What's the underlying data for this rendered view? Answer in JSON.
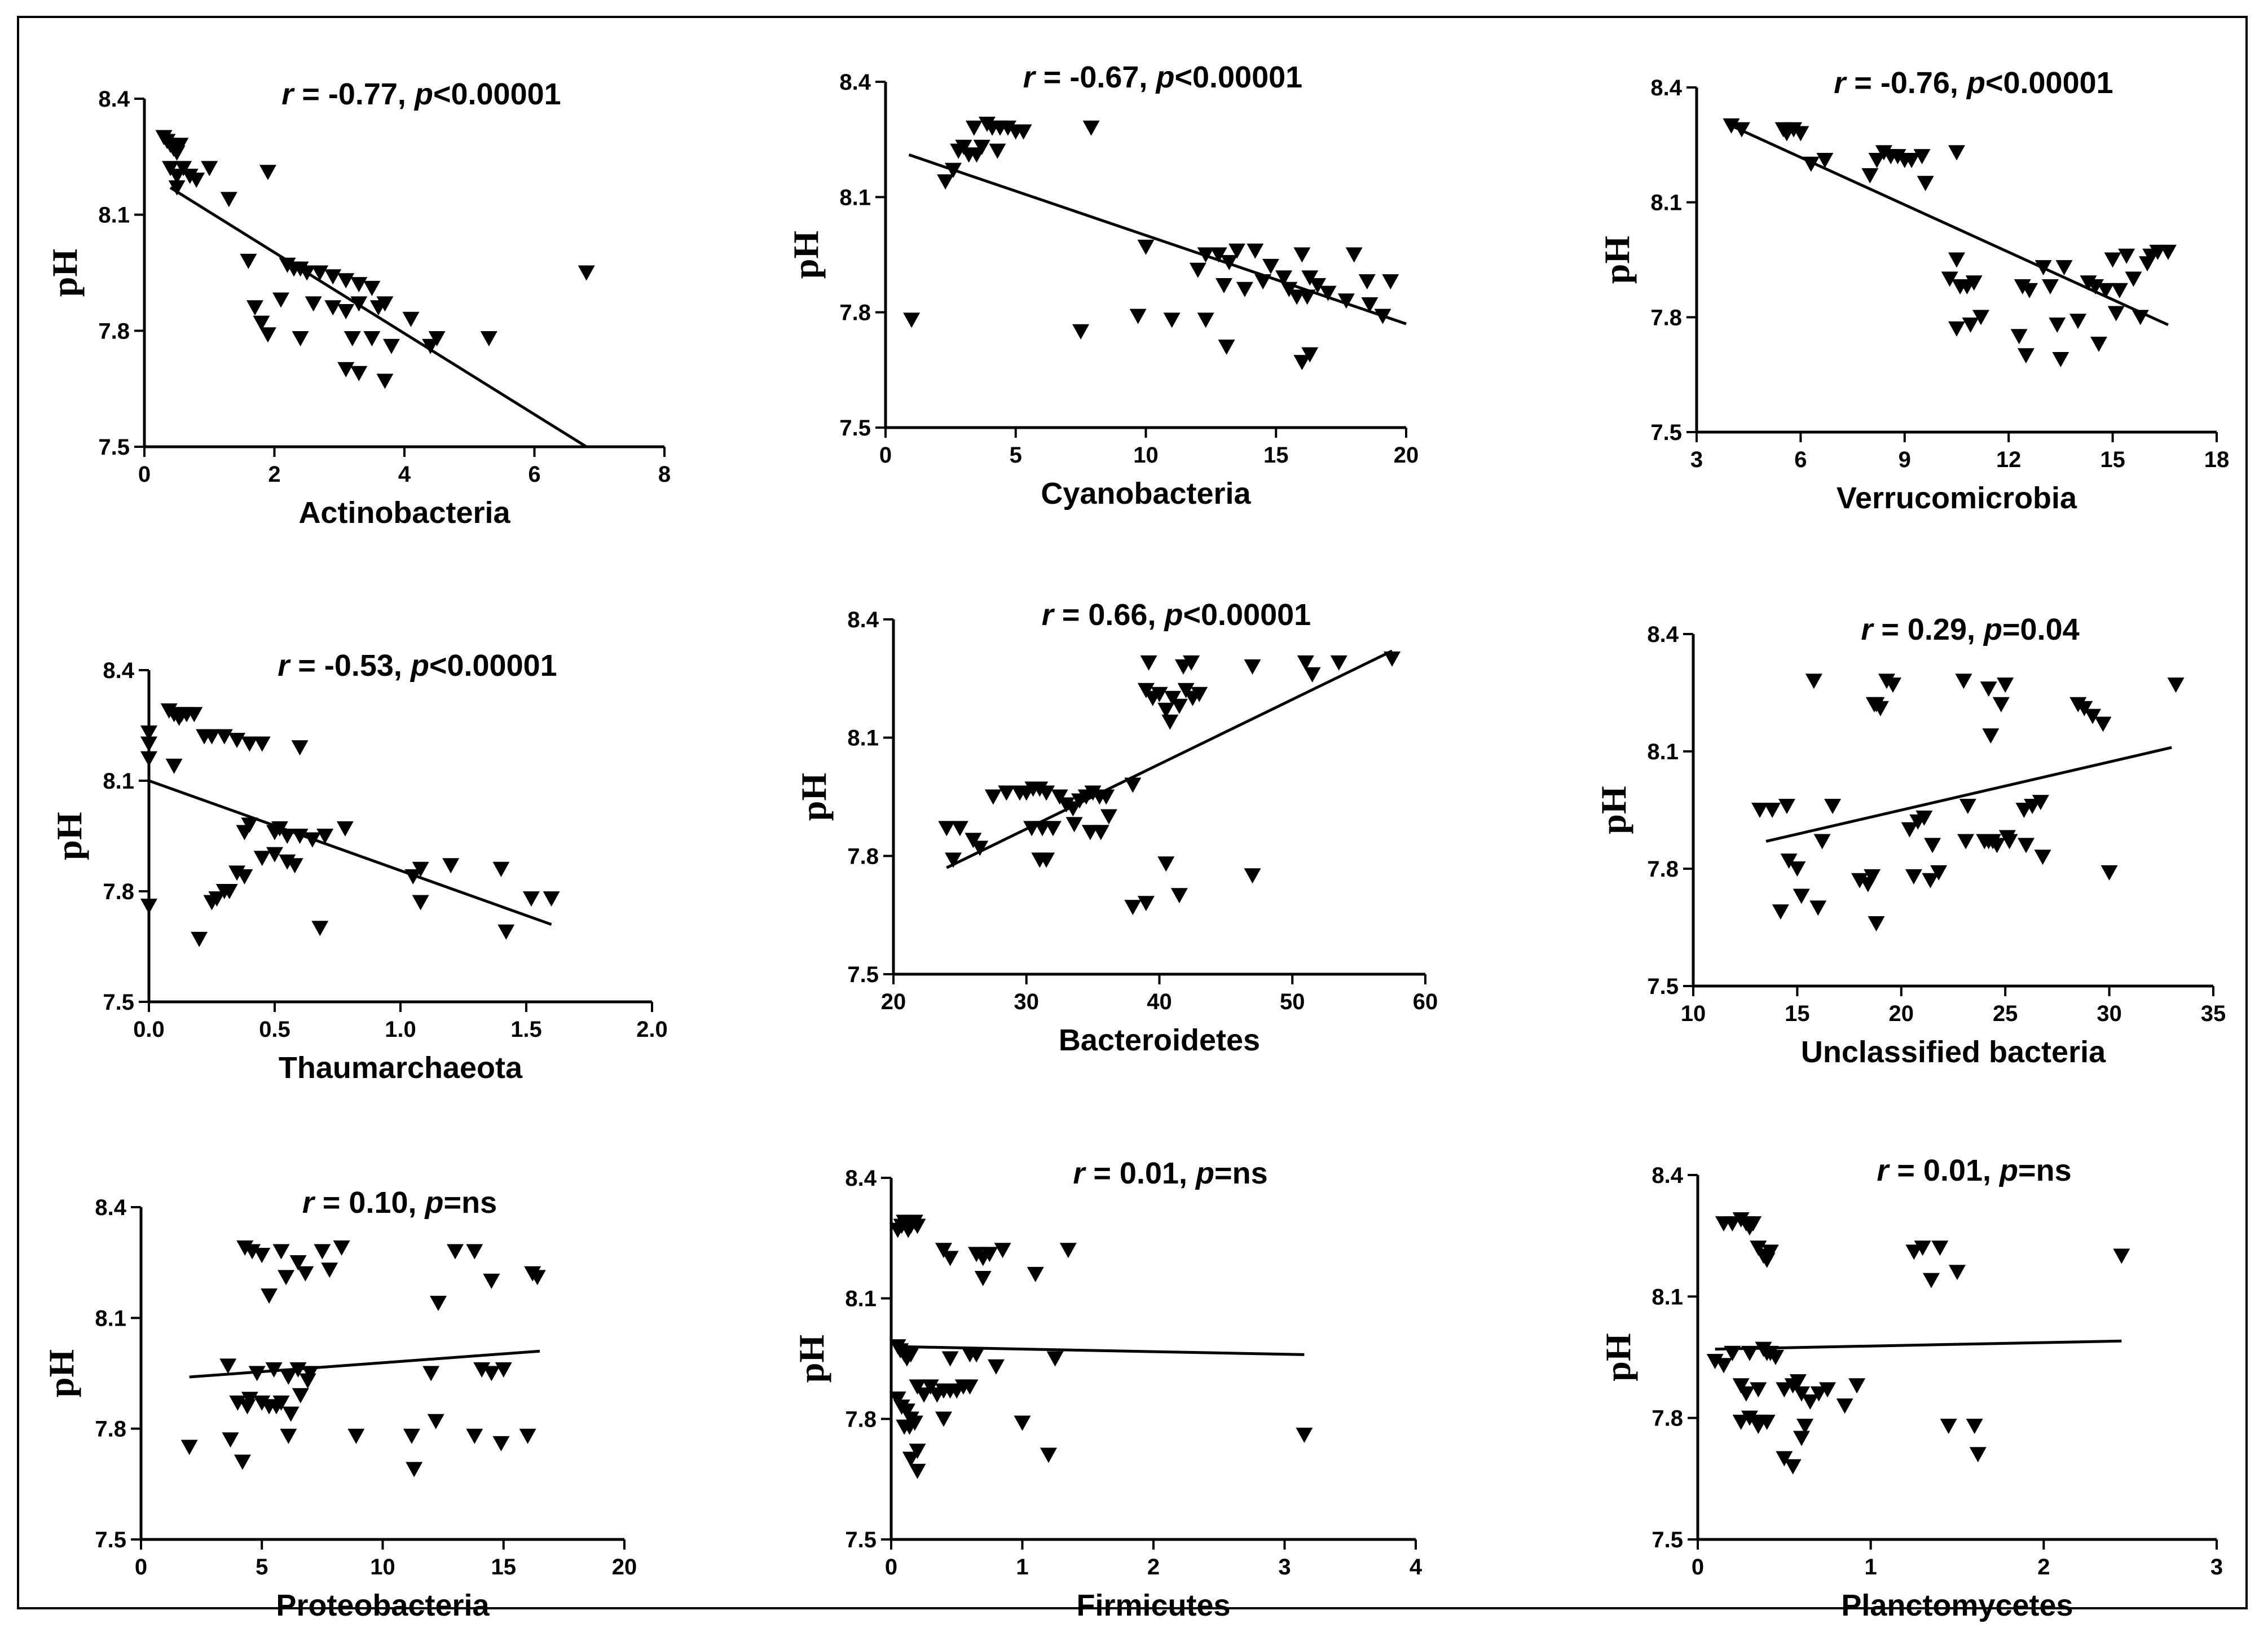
{
  "figure": {
    "background": "#ffffff",
    "marker_color": "#000000",
    "line_color": "#000000"
  },
  "chart_data": [
    {
      "type": "scatter",
      "title": "r = -0.77, p<0.00001",
      "stat_r": "-0.77",
      "stat_p": "<0.00001",
      "xlabel": "Actinobacteria",
      "ylabel": "pH",
      "xlim": [
        0,
        8
      ],
      "ylim": [
        7.5,
        8.4
      ],
      "xticks": [
        0,
        2,
        4,
        6,
        8
      ],
      "xtick_labels": [
        "0",
        "2",
        "4",
        "6",
        "8"
      ],
      "yticks": [
        7.5,
        7.8,
        8.1,
        8.4
      ],
      "ytick_labels": [
        "7.5",
        "7.8",
        "8.1",
        "8.4"
      ],
      "regression": [
        [
          0.4,
          8.17
        ],
        [
          6.8,
          7.5
        ]
      ],
      "x": [
        0.3,
        0.35,
        0.4,
        0.45,
        0.5,
        0.55,
        0.4,
        0.5,
        0.6,
        0.7,
        0.8,
        1.0,
        0.5,
        1.3,
        1.6,
        1.7,
        1.9,
        1.8,
        2.2,
        2.3,
        2.4,
        2.5,
        2.1,
        2.7,
        2.9,
        3.1,
        3.3,
        3.5,
        3.7,
        2.6,
        2.9,
        3.1,
        3.3,
        3.6,
        4.1,
        3.2,
        3.5,
        3.8,
        4.4,
        3.1,
        3.3,
        3.7,
        4.5,
        5.3,
        6.8,
        1.9,
        2.4
      ],
      "y": [
        8.3,
        8.29,
        8.28,
        8.27,
        8.26,
        8.28,
        8.22,
        8.2,
        8.22,
        8.2,
        8.19,
        8.22,
        8.17,
        8.14,
        7.98,
        7.86,
        7.79,
        7.82,
        7.97,
        7.96,
        7.96,
        7.95,
        7.88,
        7.95,
        7.94,
        7.93,
        7.92,
        7.91,
        7.87,
        7.87,
        7.86,
        7.85,
        7.87,
        7.86,
        7.83,
        7.78,
        7.78,
        7.76,
        7.76,
        7.7,
        7.69,
        7.67,
        7.78,
        7.78,
        7.95,
        8.21,
        7.78
      ]
    },
    {
      "type": "scatter",
      "title": "r = -0.67, p<0.00001",
      "stat_r": "-0.67",
      "stat_p": "<0.00001",
      "xlabel": "Cyanobacteria",
      "ylabel": "pH",
      "xlim": [
        0,
        20
      ],
      "ylim": [
        7.5,
        8.4
      ],
      "xticks": [
        0,
        5,
        10,
        15,
        20
      ],
      "xtick_labels": [
        "0",
        "5",
        "10",
        "15",
        "20"
      ],
      "yticks": [
        7.5,
        7.8,
        8.1,
        8.4
      ],
      "ytick_labels": [
        "7.5",
        "7.8",
        "8.1",
        "8.4"
      ],
      "regression": [
        [
          0.9,
          8.21
        ],
        [
          20,
          7.77
        ]
      ],
      "x": [
        1.0,
        2.3,
        2.6,
        2.8,
        3.0,
        3.2,
        3.5,
        3.7,
        3.9,
        4.1,
        4.4,
        4.7,
        5.0,
        5.3,
        3.4,
        4.3,
        7.9,
        10.0,
        12.3,
        12.8,
        13.2,
        13.5,
        14.2,
        14.8,
        15.3,
        16.0,
        16.3,
        17.0,
        18.0,
        18.5,
        19.4,
        12.0,
        13.0,
        13.8,
        14.5,
        15.5,
        15.8,
        16.2,
        16.6,
        17.7,
        18.6,
        19.1,
        7.5,
        9.7,
        11.0,
        12.3,
        13.1,
        16.0,
        16.3
      ],
      "y": [
        7.78,
        8.14,
        8.17,
        8.22,
        8.23,
        8.21,
        8.21,
        8.23,
        8.29,
        8.28,
        8.28,
        8.28,
        8.27,
        8.27,
        8.28,
        8.22,
        8.28,
        7.97,
        7.95,
        7.95,
        7.93,
        7.96,
        7.96,
        7.92,
        7.89,
        7.95,
        7.89,
        7.85,
        7.95,
        7.88,
        7.88,
        7.91,
        7.87,
        7.86,
        7.88,
        7.86,
        7.84,
        7.84,
        7.87,
        7.83,
        7.82,
        7.79,
        7.75,
        7.79,
        7.78,
        7.78,
        7.71,
        7.67,
        7.69
      ]
    },
    {
      "type": "scatter",
      "title": "r = -0.76, p<0.00001",
      "stat_r": "-0.76",
      "stat_p": "<0.00001",
      "xlabel": "Verrucomicrobia",
      "ylabel": "pH",
      "xlim": [
        3,
        18
      ],
      "ylim": [
        7.5,
        8.4
      ],
      "xticks": [
        3,
        6,
        9,
        12,
        15,
        18
      ],
      "xtick_labels": [
        "3",
        "6",
        "9",
        "12",
        "15",
        "18"
      ],
      "yticks": [
        7.5,
        7.8,
        8.1,
        8.4
      ],
      "ytick_labels": [
        "7.5",
        "7.8",
        "8.1",
        "8.4"
      ],
      "regression": [
        [
          4,
          8.3
        ],
        [
          16.6,
          7.78
        ]
      ],
      "x": [
        4.0,
        4.3,
        5.5,
        5.6,
        5.8,
        6.0,
        6.3,
        6.7,
        8.0,
        8.4,
        8.6,
        8.8,
        9.0,
        9.2,
        9.5,
        10.5,
        9.6,
        8.2,
        10.5,
        10.8,
        10.3,
        11.0,
        10.6,
        12.4,
        12.6,
        13.2,
        13.0,
        13.6,
        14.3,
        14.5,
        14.8,
        15.2,
        15.6,
        15.0,
        16.1,
        16.3,
        16.6,
        16.0,
        15.4,
        15.1,
        12.3,
        12.5,
        14.0,
        13.5,
        14.6,
        15.8,
        13.4,
        10.5,
        10.9,
        11.2
      ],
      "y": [
        8.3,
        8.29,
        8.29,
        8.28,
        8.29,
        8.28,
        8.2,
        8.21,
        8.17,
        8.23,
        8.22,
        8.22,
        8.21,
        8.21,
        8.22,
        8.23,
        8.15,
        8.21,
        7.95,
        7.88,
        7.9,
        7.89,
        7.88,
        7.88,
        7.87,
        7.88,
        7.93,
        7.93,
        7.89,
        7.88,
        7.87,
        7.87,
        7.9,
        7.95,
        7.96,
        7.97,
        7.97,
        7.94,
        7.96,
        7.81,
        7.75,
        7.7,
        7.79,
        7.69,
        7.73,
        7.8,
        7.78,
        7.77,
        7.78,
        7.8
      ]
    },
    {
      "type": "scatter",
      "title": "r = -0.53, p<0.00001",
      "stat_r": "-0.53",
      "stat_p": "<0.00001",
      "xlabel": "Thaumarchaeota",
      "ylabel": "pH",
      "xlim": [
        0,
        2
      ],
      "ylim": [
        7.5,
        8.4
      ],
      "xticks": [
        0,
        0.5,
        1,
        1.5,
        2
      ],
      "xtick_labels": [
        "0.0",
        "0.5",
        "1.0",
        "1.5",
        "2.0"
      ],
      "yticks": [
        7.5,
        7.8,
        8.1,
        8.4
      ],
      "ytick_labels": [
        "7.5",
        "7.8",
        "8.1",
        "8.4"
      ],
      "regression": [
        [
          0,
          8.1
        ],
        [
          1.6,
          7.71
        ]
      ],
      "x": [
        0.0,
        0.0,
        0.0,
        0.0,
        0.08,
        0.1,
        0.12,
        0.15,
        0.18,
        0.1,
        0.13,
        0.22,
        0.25,
        0.3,
        0.35,
        0.4,
        0.45,
        0.6,
        0.38,
        0.4,
        0.5,
        0.52,
        0.55,
        0.6,
        0.65,
        0.7,
        0.78,
        0.45,
        0.5,
        0.55,
        0.58,
        0.35,
        0.38,
        0.32,
        0.3,
        0.27,
        0.25,
        0.2,
        0.68,
        1.05,
        1.08,
        1.2,
        1.4,
        1.42,
        1.52,
        1.6,
        1.08
      ],
      "y": [
        8.23,
        8.2,
        8.16,
        7.76,
        8.29,
        8.28,
        8.27,
        8.28,
        8.28,
        8.14,
        8.28,
        8.22,
        8.22,
        8.22,
        8.21,
        8.2,
        8.2,
        8.19,
        7.96,
        7.98,
        7.96,
        7.97,
        7.95,
        7.95,
        7.94,
        7.95,
        7.97,
        7.89,
        7.9,
        7.88,
        7.87,
        7.85,
        7.84,
        7.8,
        7.8,
        7.78,
        7.77,
        7.67,
        7.7,
        7.84,
        7.86,
        7.87,
        7.86,
        7.69,
        7.78,
        7.78,
        7.77
      ]
    },
    {
      "type": "scatter",
      "title": "r = 0.66, p<0.00001",
      "stat_r": "0.66",
      "stat_p": "<0.00001",
      "xlabel": "Bacteroidetes",
      "ylabel": "pH",
      "xlim": [
        20,
        60
      ],
      "ylim": [
        7.5,
        8.4
      ],
      "xticks": [
        20,
        30,
        40,
        50,
        60
      ],
      "xtick_labels": [
        "20",
        "30",
        "40",
        "50",
        "60"
      ],
      "yticks": [
        7.5,
        7.8,
        8.1,
        8.4
      ],
      "ytick_labels": [
        "7.5",
        "7.8",
        "8.1",
        "8.4"
      ],
      "regression": [
        [
          24,
          7.77
        ],
        [
          57.5,
          8.32
        ]
      ],
      "x": [
        24.0,
        25.0,
        26.0,
        24.5,
        26.5,
        27.5,
        28.5,
        29.5,
        30.0,
        30.5,
        31.0,
        31.5,
        32.5,
        33.0,
        33.5,
        34.0,
        34.5,
        35.0,
        35.5,
        36.0,
        31.2,
        32.0,
        33.6,
        34.8,
        35.6,
        36.2,
        30.4,
        31.0,
        31.5,
        38.0,
        39.0,
        39.5,
        40.0,
        40.5,
        41.0,
        41.5,
        42.0,
        42.5,
        43.0,
        39.2,
        40.8,
        41.8,
        42.4,
        47.0,
        51.0,
        51.5,
        53.5,
        57.5,
        39.0,
        40.5,
        41.5,
        38.0,
        47.0
      ],
      "y": [
        7.87,
        7.87,
        7.84,
        7.79,
        7.82,
        7.95,
        7.96,
        7.96,
        7.96,
        7.97,
        7.97,
        7.96,
        7.95,
        7.93,
        7.92,
        7.94,
        7.95,
        7.96,
        7.95,
        7.95,
        7.87,
        7.87,
        7.88,
        7.86,
        7.86,
        7.9,
        7.87,
        7.79,
        7.79,
        7.98,
        8.22,
        8.2,
        8.21,
        8.17,
        8.2,
        8.18,
        8.22,
        8.2,
        8.21,
        8.29,
        8.14,
        8.28,
        8.29,
        8.28,
        8.29,
        8.26,
        8.29,
        8.3,
        7.68,
        7.78,
        7.7,
        7.67,
        7.75
      ]
    },
    {
      "type": "scatter",
      "title": "r = 0.29, p=0.04",
      "stat_r": "0.29",
      "stat_p": "=0.04",
      "xlabel": "Unclassified bacteria",
      "ylabel": "pH",
      "xlim": [
        10,
        35
      ],
      "ylim": [
        7.5,
        8.4
      ],
      "xticks": [
        10,
        15,
        20,
        25,
        30,
        35
      ],
      "xtick_labels": [
        "10",
        "15",
        "20",
        "25",
        "30",
        "35"
      ],
      "yticks": [
        7.5,
        7.8,
        8.1,
        8.4
      ],
      "ytick_labels": [
        "7.5",
        "7.8",
        "8.1",
        "8.4"
      ],
      "regression": [
        [
          13.5,
          7.87
        ],
        [
          33,
          8.11
        ]
      ],
      "x": [
        13.2,
        13.8,
        14.5,
        15.8,
        16.7,
        18.8,
        19.0,
        19.3,
        19.6,
        23.0,
        24.2,
        24.8,
        25.0,
        28.5,
        28.8,
        29.2,
        29.7,
        33.2,
        24.3,
        14.6,
        15.0,
        16.2,
        18.0,
        20.4,
        20.8,
        21.1,
        21.5,
        23.2,
        24.0,
        24.6,
        25.1,
        25.9,
        26.3,
        26.7,
        18.6,
        20.6,
        21.4,
        23.1,
        24.2,
        25.2,
        26.0,
        26.8,
        30.0,
        14.2,
        15.2,
        16.0,
        18.4,
        18.8,
        18.7,
        21.8,
        24.4
      ],
      "y": [
        7.95,
        7.95,
        7.96,
        8.28,
        7.96,
        8.22,
        8.21,
        8.28,
        8.27,
        8.28,
        8.26,
        8.22,
        8.27,
        8.22,
        8.21,
        8.19,
        8.17,
        8.27,
        8.14,
        7.82,
        7.8,
        7.87,
        7.77,
        7.9,
        7.92,
        7.93,
        7.86,
        7.96,
        7.87,
        7.86,
        7.88,
        7.95,
        7.96,
        7.97,
        7.78,
        7.78,
        7.77,
        7.87,
        7.87,
        7.87,
        7.86,
        7.83,
        7.79,
        7.69,
        7.73,
        7.7,
        7.76,
        7.66,
        8.22,
        7.79,
        7.87
      ]
    },
    {
      "type": "scatter",
      "title": "r = 0.10, p=ns",
      "stat_r": "0.10",
      "stat_p": "=ns",
      "xlabel": "Proteobacteria",
      "ylabel": "pH",
      "xlim": [
        0,
        20
      ],
      "ylim": [
        7.5,
        8.4
      ],
      "xticks": [
        0,
        5,
        10,
        15,
        20
      ],
      "xtick_labels": [
        "0",
        "5",
        "10",
        "15",
        "20"
      ],
      "yticks": [
        7.5,
        7.8,
        8.1,
        8.4
      ],
      "ytick_labels": [
        "7.5",
        "7.8",
        "8.1",
        "8.4"
      ],
      "regression": [
        [
          2,
          7.94
        ],
        [
          16.5,
          8.01
        ]
      ],
      "x": [
        4.3,
        4.6,
        5.0,
        5.8,
        6.5,
        6.8,
        7.5,
        7.8,
        8.3,
        13.0,
        13.8,
        14.5,
        16.2,
        16.4,
        5.3,
        6.0,
        12.3,
        3.6,
        4.0,
        4.5,
        5.0,
        5.3,
        5.8,
        6.2,
        6.6,
        6.9,
        4.8,
        5.5,
        6.1,
        6.5,
        7.0,
        12.0,
        14.1,
        14.5,
        15.0,
        4.2,
        2.0,
        3.7,
        4.4,
        5.6,
        6.1,
        8.9,
        11.2,
        12.2,
        13.8,
        14.9,
        16.0,
        11.3
      ],
      "y": [
        8.29,
        8.28,
        8.27,
        8.28,
        8.25,
        8.22,
        8.28,
        8.23,
        8.29,
        8.28,
        8.28,
        8.2,
        8.22,
        8.21,
        8.16,
        8.21,
        8.14,
        7.97,
        7.87,
        7.88,
        7.87,
        7.86,
        7.87,
        7.84,
        7.89,
        7.93,
        7.95,
        7.96,
        7.94,
        7.96,
        7.95,
        7.95,
        7.96,
        7.95,
        7.96,
        7.71,
        7.75,
        7.77,
        7.86,
        7.86,
        7.78,
        7.78,
        7.78,
        7.82,
        7.78,
        7.76,
        7.78,
        7.69
      ]
    },
    {
      "type": "scatter",
      "title": "r = 0.01, p=ns",
      "stat_r": "0.01",
      "stat_p": "=ns",
      "xlabel": "Firmicutes",
      "ylabel": "pH",
      "xlim": [
        0,
        4
      ],
      "ylim": [
        7.5,
        8.4
      ],
      "xticks": [
        0,
        1,
        2,
        3,
        4
      ],
      "xtick_labels": [
        "0",
        "1",
        "2",
        "3",
        "4"
      ],
      "yticks": [
        7.5,
        7.8,
        8.1,
        8.4
      ],
      "ytick_labels": [
        "7.5",
        "7.8",
        "8.1",
        "8.4"
      ],
      "regression": [
        [
          0.05,
          7.98
        ],
        [
          3.15,
          7.96
        ]
      ],
      "x": [
        0.05,
        0.08,
        0.1,
        0.12,
        0.15,
        0.18,
        0.2,
        0.13,
        0.4,
        0.45,
        0.65,
        0.7,
        0.75,
        0.85,
        1.1,
        1.35,
        0.7,
        0.05,
        0.07,
        0.1,
        0.12,
        0.15,
        0.2,
        0.25,
        0.3,
        0.35,
        0.4,
        0.45,
        0.5,
        0.55,
        0.6,
        0.65,
        0.8,
        0.05,
        0.08,
        0.12,
        0.15,
        0.18,
        0.1,
        0.14,
        0.2,
        0.4,
        0.45,
        0.6,
        1.0,
        1.2,
        3.15,
        0.15,
        0.2,
        1.25
      ],
      "y": [
        8.27,
        8.28,
        8.29,
        8.28,
        8.28,
        8.29,
        8.28,
        8.27,
        8.22,
        8.2,
        8.21,
        8.2,
        8.21,
        8.22,
        8.16,
        8.22,
        8.15,
        7.98,
        7.97,
        7.96,
        7.95,
        7.96,
        7.88,
        7.86,
        7.88,
        7.86,
        7.87,
        7.87,
        7.87,
        7.88,
        7.88,
        7.96,
        7.93,
        7.85,
        7.83,
        7.82,
        7.8,
        7.79,
        7.78,
        7.78,
        7.72,
        7.8,
        7.95,
        7.96,
        7.79,
        7.71,
        7.76,
        7.7,
        7.67,
        7.95
      ]
    },
    {
      "type": "scatter",
      "title": "r = 0.01, p=ns",
      "stat_r": "0.01",
      "stat_p": "=ns",
      "xlabel": "Planctomycetes",
      "ylabel": "pH",
      "xlim": [
        0,
        3
      ],
      "ylim": [
        7.5,
        8.4
      ],
      "xticks": [
        0,
        1,
        2,
        3
      ],
      "xtick_labels": [
        "0",
        "1",
        "2",
        "3"
      ],
      "yticks": [
        7.5,
        7.8,
        8.1,
        8.4
      ],
      "ytick_labels": [
        "7.5",
        "7.8",
        "8.1",
        "8.4"
      ],
      "regression": [
        [
          0.1,
          7.97
        ],
        [
          2.45,
          7.99
        ]
      ],
      "x": [
        0.15,
        0.2,
        0.25,
        0.28,
        0.3,
        0.32,
        0.35,
        0.38,
        0.4,
        0.42,
        1.25,
        1.3,
        1.4,
        1.5,
        2.45,
        1.35,
        0.1,
        0.15,
        0.2,
        0.25,
        0.3,
        0.35,
        0.38,
        0.4,
        0.45,
        0.5,
        0.55,
        0.58,
        0.6,
        0.65,
        0.7,
        0.75,
        0.85,
        0.92,
        0.2,
        0.25,
        0.3,
        0.35,
        0.4,
        0.5,
        0.55,
        0.6,
        0.62,
        1.45,
        1.6,
        1.62,
        0.36,
        0.28,
        0.42
      ],
      "y": [
        8.28,
        8.28,
        8.29,
        8.28,
        8.27,
        8.28,
        8.22,
        8.2,
        8.19,
        8.21,
        8.21,
        8.22,
        8.22,
        8.16,
        8.2,
        8.14,
        7.94,
        7.93,
        7.96,
        7.88,
        7.96,
        7.87,
        7.97,
        7.96,
        7.95,
        7.87,
        7.88,
        7.89,
        7.86,
        7.84,
        7.86,
        7.87,
        7.83,
        7.88,
        7.96,
        7.79,
        7.8,
        7.78,
        7.79,
        7.7,
        7.68,
        7.75,
        7.78,
        7.78,
        7.78,
        7.71,
        7.79,
        7.86,
        7.96
      ]
    }
  ]
}
